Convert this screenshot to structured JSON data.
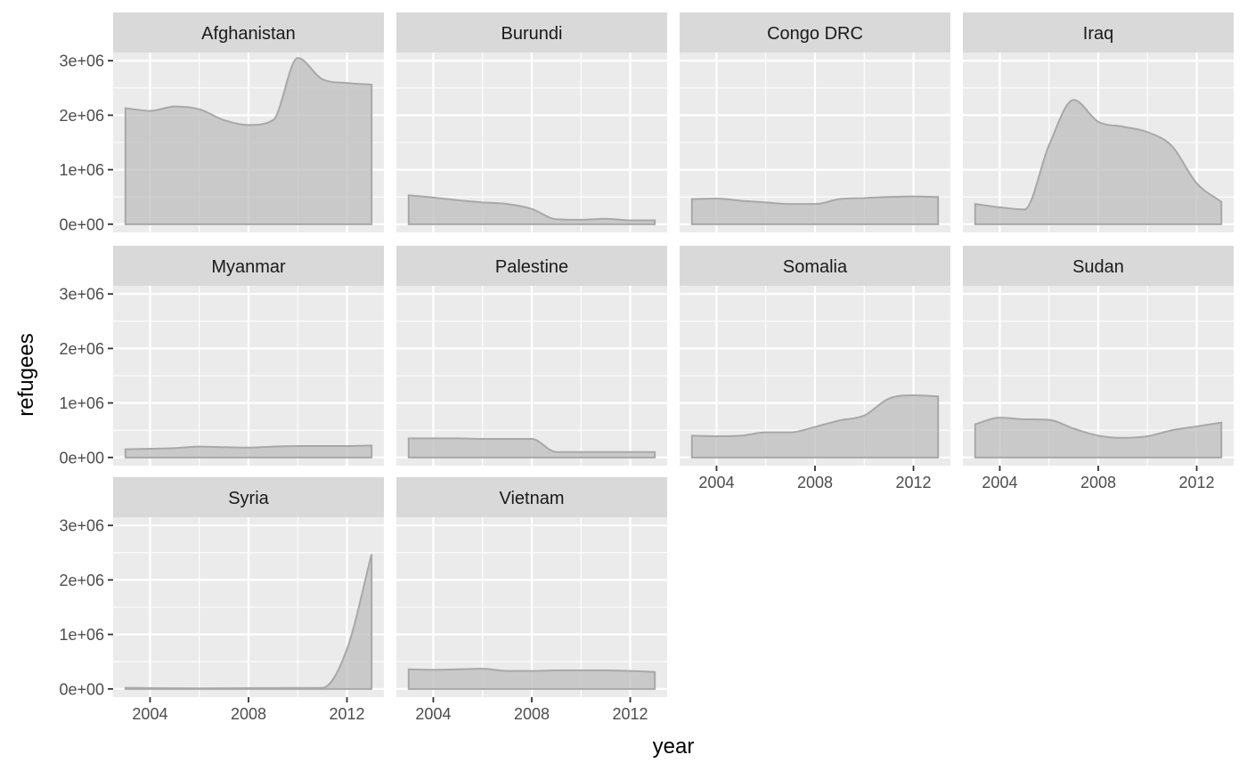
{
  "chart_data": {
    "type": "area",
    "layout": "facet-wrap",
    "xlabel": "year",
    "ylabel": "refugees",
    "x_ticks": [
      2004,
      2008,
      2012
    ],
    "x_tick_labels": [
      "2004",
      "2008",
      "2012"
    ],
    "y_ticks": [
      0,
      1000000,
      2000000,
      3000000
    ],
    "y_tick_labels": [
      "0e+00",
      "1e+06",
      "2e+06",
      "3e+06"
    ],
    "xlim": [
      2002.5,
      2013.5
    ],
    "ylim": [
      -150000,
      3150000
    ],
    "x": [
      2003,
      2004,
      2005,
      2006,
      2007,
      2008,
      2009,
      2010,
      2011,
      2012,
      2013
    ],
    "grid": true,
    "color": "#bdbdbd",
    "panels": [
      {
        "name": "Afghanistan",
        "values": [
          2130000,
          2080000,
          2160000,
          2110000,
          1910000,
          1820000,
          1910000,
          3050000,
          2660000,
          2590000,
          2560000
        ]
      },
      {
        "name": "Burundi",
        "values": [
          530000,
          490000,
          440000,
          400000,
          370000,
          280000,
          90000,
          80000,
          100000,
          70000,
          70000
        ]
      },
      {
        "name": "Congo DRC",
        "values": [
          460000,
          470000,
          430000,
          400000,
          370000,
          370000,
          460000,
          480000,
          500000,
          510000,
          500000
        ]
      },
      {
        "name": "Iraq",
        "values": [
          370000,
          310000,
          270000,
          1450000,
          2280000,
          1880000,
          1790000,
          1690000,
          1430000,
          750000,
          410000
        ]
      },
      {
        "name": "Myanmar",
        "values": [
          150000,
          160000,
          170000,
          200000,
          190000,
          180000,
          200000,
          210000,
          210000,
          210000,
          220000
        ]
      },
      {
        "name": "Palestine",
        "values": [
          350000,
          350000,
          350000,
          340000,
          340000,
          340000,
          100000,
          100000,
          100000,
          100000,
          100000
        ]
      },
      {
        "name": "Somalia",
        "values": [
          400000,
          390000,
          400000,
          460000,
          460000,
          560000,
          680000,
          770000,
          1080000,
          1140000,
          1120000
        ]
      },
      {
        "name": "Sudan",
        "values": [
          610000,
          730000,
          700000,
          690000,
          530000,
          400000,
          360000,
          390000,
          500000,
          570000,
          640000
        ]
      },
      {
        "name": "Syria",
        "values": [
          20000,
          15000,
          12000,
          10000,
          12000,
          15000,
          15000,
          18000,
          20000,
          730000,
          2470000
        ]
      },
      {
        "name": "Vietnam",
        "values": [
          360000,
          350000,
          360000,
          370000,
          330000,
          330000,
          340000,
          340000,
          340000,
          330000,
          310000
        ]
      }
    ]
  }
}
